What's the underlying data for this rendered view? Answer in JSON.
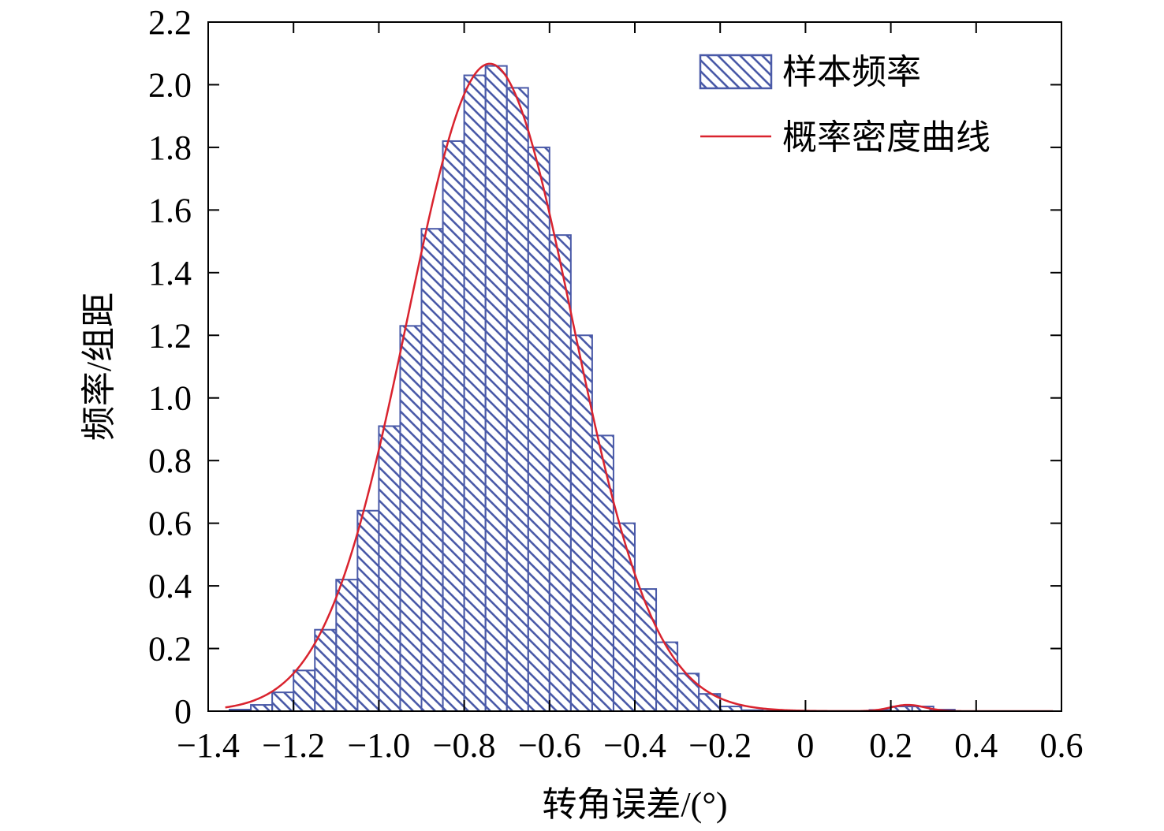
{
  "chart_data": {
    "type": "bar",
    "xlabel": "转角误差/(°)",
    "ylabel": "频率/组距",
    "xlim": [
      -1.4,
      0.6
    ],
    "ylim": [
      0,
      2.2
    ],
    "x_ticks": [
      "−1.4",
      "−1.2",
      "−1.0",
      "−0.8",
      "−0.6",
      "−0.4",
      "−0.2",
      "0",
      "0.2",
      "0.4",
      "0.6"
    ],
    "x_tick_values": [
      -1.4,
      -1.2,
      -1.0,
      -0.8,
      -0.6,
      -0.4,
      -0.2,
      0,
      0.2,
      0.4,
      0.6
    ],
    "y_ticks": [
      "0",
      "0.2",
      "0.4",
      "0.6",
      "0.8",
      "1.0",
      "1.2",
      "1.4",
      "1.6",
      "1.8",
      "2.0",
      "2.2"
    ],
    "y_tick_values": [
      0,
      0.2,
      0.4,
      0.6,
      0.8,
      1.0,
      1.2,
      1.4,
      1.6,
      1.8,
      2.0,
      2.2
    ],
    "bin_width": 0.05,
    "bins": [
      {
        "x0": -1.35,
        "value": 0.005
      },
      {
        "x0": -1.3,
        "value": 0.02
      },
      {
        "x0": -1.25,
        "value": 0.06
      },
      {
        "x0": -1.2,
        "value": 0.13
      },
      {
        "x0": -1.15,
        "value": 0.26
      },
      {
        "x0": -1.1,
        "value": 0.42
      },
      {
        "x0": -1.05,
        "value": 0.64
      },
      {
        "x0": -1.0,
        "value": 0.91
      },
      {
        "x0": -0.95,
        "value": 1.23
      },
      {
        "x0": -0.9,
        "value": 1.54
      },
      {
        "x0": -0.85,
        "value": 1.82
      },
      {
        "x0": -0.8,
        "value": 2.03
      },
      {
        "x0": -0.75,
        "value": 2.06
      },
      {
        "x0": -0.7,
        "value": 1.99
      },
      {
        "x0": -0.65,
        "value": 1.8
      },
      {
        "x0": -0.6,
        "value": 1.52
      },
      {
        "x0": -0.55,
        "value": 1.2
      },
      {
        "x0": -0.5,
        "value": 0.88
      },
      {
        "x0": -0.45,
        "value": 0.6
      },
      {
        "x0": -0.4,
        "value": 0.39
      },
      {
        "x0": -0.35,
        "value": 0.22
      },
      {
        "x0": -0.3,
        "value": 0.12
      },
      {
        "x0": -0.25,
        "value": 0.055
      },
      {
        "x0": -0.2,
        "value": 0.015
      },
      {
        "x0": -0.15,
        "value": 0.003
      },
      {
        "x0": -0.1,
        "value": 0.001
      },
      {
        "x0": 0.15,
        "value": 0.004
      },
      {
        "x0": 0.2,
        "value": 0.015
      },
      {
        "x0": 0.25,
        "value": 0.015
      },
      {
        "x0": 0.3,
        "value": 0.005
      }
    ],
    "series": [
      {
        "name": "样本频率",
        "kind": "histogram",
        "color": "#4a5aa8",
        "fill": "hatched"
      },
      {
        "name": "概率密度曲线",
        "kind": "line",
        "color": "#d9232e",
        "components": [
          {
            "weight": 1.0,
            "mean": -0.74,
            "std": 0.193
          },
          {
            "weight": 0.002,
            "mean": 0.24,
            "std": 0.04
          }
        ]
      }
    ],
    "legend": {
      "position": "top-right",
      "frame": false
    },
    "grid": false
  }
}
